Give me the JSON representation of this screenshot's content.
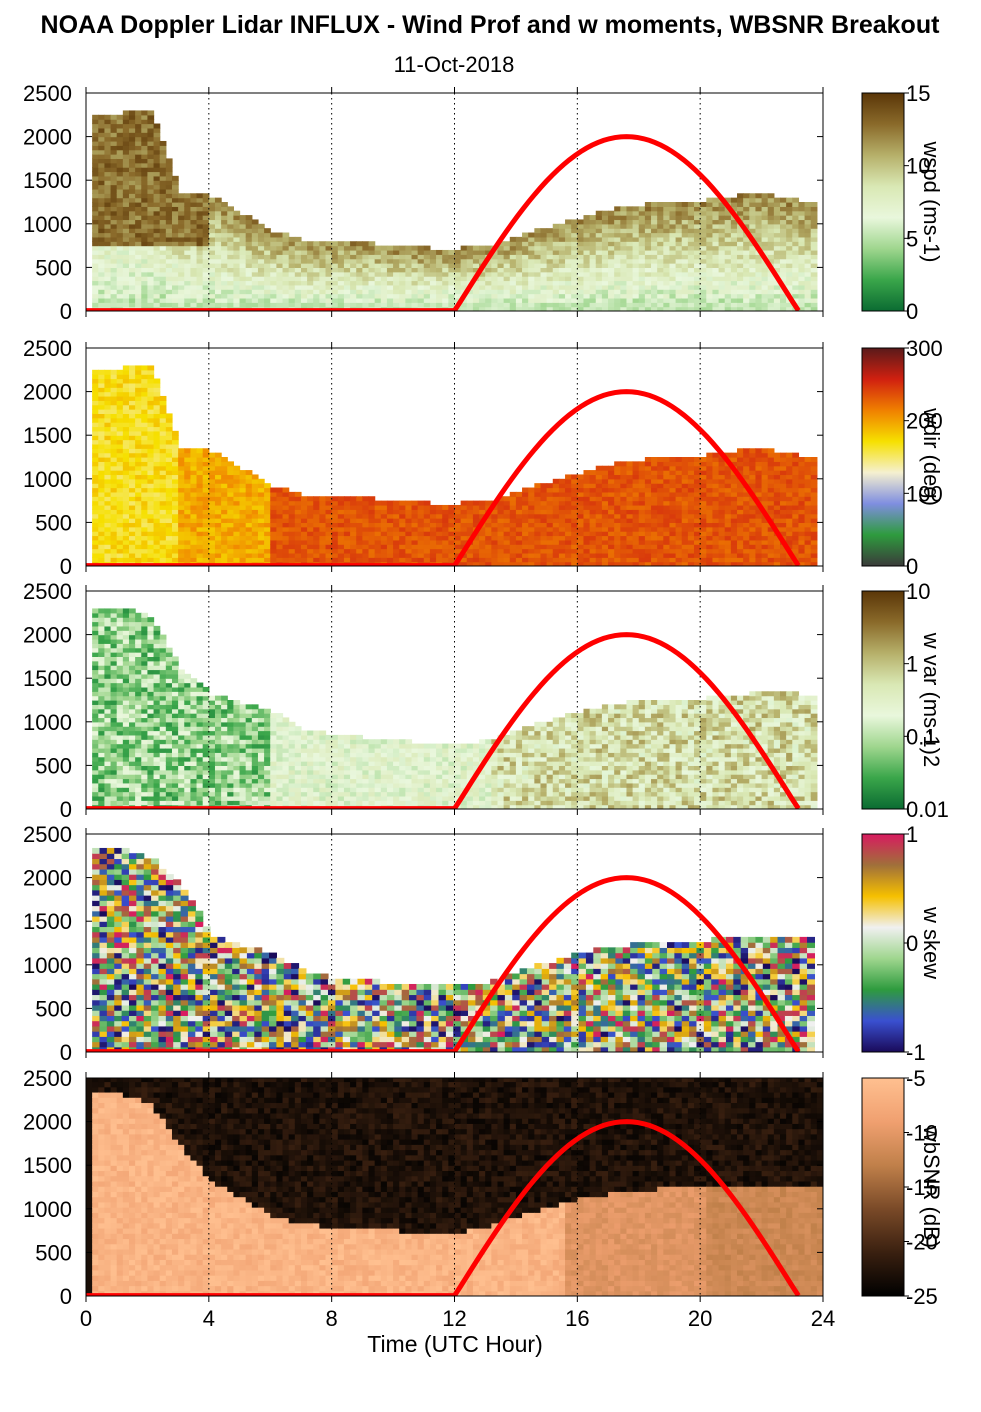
{
  "title": "NOAA Doppler Lidar INFLUX - Wind Prof and w moments, WBSNR Breakout",
  "subtitle": "11-Oct-2018",
  "xlabel": "Time (UTC Hour)",
  "chart_data": [
    {
      "type": "heatmap",
      "name": "wspd",
      "colorbar_label": "wspd (ms-1)",
      "colorbar_ticks": [
        "15",
        "10",
        "5",
        "0"
      ],
      "y_ticks": [
        "2500",
        "2000",
        "1500",
        "1000",
        "500",
        "0"
      ],
      "x_ticks": [
        "0",
        "4",
        "8",
        "12",
        "16",
        "20",
        "24"
      ],
      "xlim": [
        0,
        24
      ],
      "ylim": [
        0,
        2500
      ],
      "colormap": [
        "#0b6b32",
        "#3aa64a",
        "#9fd68e",
        "#e9f7dc",
        "#d9e8b4",
        "#b6b06a",
        "#8a6a2a",
        "#5a3608"
      ],
      "boundary_layer_top": [
        [
          0,
          2200
        ],
        [
          1,
          2250
        ],
        [
          2,
          2300
        ],
        [
          3,
          1350
        ],
        [
          4,
          1300
        ],
        [
          5,
          1100
        ],
        [
          6,
          900
        ],
        [
          7,
          800
        ],
        [
          8,
          780
        ],
        [
          9,
          760
        ],
        [
          10,
          720
        ],
        [
          11,
          700
        ],
        [
          12,
          700
        ],
        [
          13,
          720
        ],
        [
          14,
          850
        ],
        [
          15,
          950
        ],
        [
          16,
          1050
        ],
        [
          17,
          1150
        ],
        [
          18,
          1200
        ],
        [
          19,
          1220
        ],
        [
          20,
          1250
        ],
        [
          21,
          1300
        ],
        [
          22,
          1320
        ],
        [
          23,
          1250
        ],
        [
          24,
          1250
        ]
      ],
      "sun_elevation_curve": {
        "start_hour": 12,
        "peak_hour": 17.6,
        "end_hour": 23.2,
        "peak_value": 2000
      }
    },
    {
      "type": "heatmap",
      "name": "wdir",
      "colorbar_label": "wdir (deg)",
      "colorbar_ticks": [
        "300",
        "200",
        "100",
        "0"
      ],
      "y_ticks": [
        "2500",
        "2000",
        "1500",
        "1000",
        "500",
        "0"
      ],
      "x_ticks": [
        "0",
        "4",
        "8",
        "12",
        "16",
        "20",
        "24"
      ],
      "xlim": [
        0,
        24
      ],
      "ylim": [
        0,
        2500
      ],
      "colormap": [
        "#3a3a3a",
        "#2e9b3e",
        "#7f8ee0",
        "#f5f0d0",
        "#f6e000",
        "#f08000",
        "#d02010",
        "#5a1a1a"
      ],
      "boundary_layer_top": [
        [
          0,
          2200
        ],
        [
          1,
          2250
        ],
        [
          2,
          2300
        ],
        [
          3,
          1350
        ],
        [
          4,
          1300
        ],
        [
          5,
          1100
        ],
        [
          6,
          900
        ],
        [
          7,
          800
        ],
        [
          8,
          780
        ],
        [
          9,
          760
        ],
        [
          10,
          720
        ],
        [
          11,
          700
        ],
        [
          12,
          700
        ],
        [
          13,
          720
        ],
        [
          14,
          850
        ],
        [
          15,
          950
        ],
        [
          16,
          1050
        ],
        [
          17,
          1150
        ],
        [
          18,
          1200
        ],
        [
          19,
          1220
        ],
        [
          20,
          1250
        ],
        [
          21,
          1300
        ],
        [
          22,
          1320
        ],
        [
          23,
          1250
        ],
        [
          24,
          1250
        ]
      ],
      "sun_elevation_curve": {
        "start_hour": 12,
        "peak_hour": 17.6,
        "end_hour": 23.2,
        "peak_value": 2000
      }
    },
    {
      "type": "heatmap",
      "name": "w var",
      "colorbar_label": "w var (ms-1)2",
      "colorbar_ticks": [
        "10",
        "1",
        "0.1",
        "0.01"
      ],
      "y_ticks": [
        "2500",
        "2000",
        "1500",
        "1000",
        "500",
        "0"
      ],
      "x_ticks": [
        "0",
        "4",
        "8",
        "12",
        "16",
        "20",
        "24"
      ],
      "xlim": [
        0,
        24
      ],
      "ylim": [
        0,
        2500
      ],
      "colormap": [
        "#0b6b32",
        "#3aa64a",
        "#9fd68e",
        "#e9f7dc",
        "#d9e8b4",
        "#b6b06a",
        "#8a6a2a",
        "#5a3608"
      ],
      "boundary_layer_top": [
        [
          0,
          2300
        ],
        [
          1,
          2300
        ],
        [
          2,
          2200
        ],
        [
          3,
          1600
        ],
        [
          4,
          1300
        ],
        [
          5,
          1200
        ],
        [
          6,
          1100
        ],
        [
          7,
          900
        ],
        [
          8,
          820
        ],
        [
          9,
          800
        ],
        [
          10,
          760
        ],
        [
          11,
          740
        ],
        [
          12,
          720
        ],
        [
          13,
          760
        ],
        [
          14,
          900
        ],
        [
          15,
          1000
        ],
        [
          16,
          1100
        ],
        [
          17,
          1180
        ],
        [
          18,
          1220
        ],
        [
          19,
          1250
        ],
        [
          20,
          1250
        ],
        [
          21,
          1280
        ],
        [
          22,
          1320
        ],
        [
          23,
          1300
        ],
        [
          24,
          1250
        ]
      ],
      "sun_elevation_curve": {
        "start_hour": 12,
        "peak_hour": 17.6,
        "end_hour": 23.2,
        "peak_value": 2000
      }
    },
    {
      "type": "heatmap",
      "name": "w skew",
      "colorbar_label": "w skew",
      "colorbar_ticks": [
        "1",
        "0",
        "-1"
      ],
      "y_ticks": [
        "2500",
        "2000",
        "1500",
        "1000",
        "500",
        "0"
      ],
      "x_ticks": [
        "0",
        "4",
        "8",
        "12",
        "16",
        "20",
        "24"
      ],
      "xlim": [
        0,
        24
      ],
      "ylim": [
        0,
        2500
      ],
      "colormap": [
        "#1a0a5a",
        "#3a50d0",
        "#2e9b3e",
        "#9fd68e",
        "#f0f0f0",
        "#f6c000",
        "#a0703a",
        "#d81b60"
      ],
      "boundary_layer_top": [
        [
          0,
          2300
        ],
        [
          1,
          2300
        ],
        [
          2,
          2200
        ],
        [
          3,
          1900
        ],
        [
          4,
          1300
        ],
        [
          5,
          1200
        ],
        [
          6,
          1100
        ],
        [
          7,
          900
        ],
        [
          8,
          820
        ],
        [
          9,
          800
        ],
        [
          10,
          760
        ],
        [
          11,
          740
        ],
        [
          12,
          720
        ],
        [
          13,
          760
        ],
        [
          14,
          900
        ],
        [
          15,
          1000
        ],
        [
          16,
          1100
        ],
        [
          17,
          1180
        ],
        [
          18,
          1220
        ],
        [
          19,
          1250
        ],
        [
          20,
          1250
        ],
        [
          21,
          1280
        ],
        [
          22,
          1320
        ],
        [
          23,
          1300
        ],
        [
          24,
          1250
        ]
      ],
      "sun_elevation_curve": {
        "start_hour": 12,
        "peak_hour": 17.6,
        "end_hour": 23.2,
        "peak_value": 2000
      }
    },
    {
      "type": "heatmap",
      "name": "wbSNR",
      "colorbar_label": "wbSNR (dB)",
      "colorbar_ticks": [
        "-5",
        "-10",
        "-15",
        "-20",
        "-25"
      ],
      "y_ticks": [
        "2500",
        "2000",
        "1500",
        "1000",
        "500",
        "0"
      ],
      "x_ticks": [
        "0",
        "4",
        "8",
        "12",
        "16",
        "20",
        "24"
      ],
      "xlim": [
        0,
        24
      ],
      "ylim": [
        0,
        2500
      ],
      "colormap": [
        "#000000",
        "#3a2010",
        "#7a4a28",
        "#c0804a",
        "#f0a070",
        "#ffc090"
      ],
      "boundary_layer_top": [
        [
          0,
          2300
        ],
        [
          1,
          2300
        ],
        [
          2,
          2200
        ],
        [
          3,
          1700
        ],
        [
          4,
          1300
        ],
        [
          5,
          1100
        ],
        [
          6,
          900
        ],
        [
          7,
          800
        ],
        [
          8,
          760
        ],
        [
          9,
          740
        ],
        [
          10,
          720
        ],
        [
          11,
          700
        ],
        [
          12,
          700
        ],
        [
          13,
          760
        ],
        [
          14,
          900
        ],
        [
          15,
          1000
        ],
        [
          16,
          1100
        ],
        [
          17,
          1150
        ],
        [
          18,
          1180
        ],
        [
          19,
          1220
        ],
        [
          20,
          1250
        ],
        [
          21,
          1250
        ],
        [
          22,
          1250
        ],
        [
          23,
          1250
        ],
        [
          24,
          1250
        ]
      ],
      "sun_elevation_curve": {
        "start_hour": 12,
        "peak_hour": 17.6,
        "end_hour": 23.2,
        "peak_value": 2000
      }
    }
  ]
}
